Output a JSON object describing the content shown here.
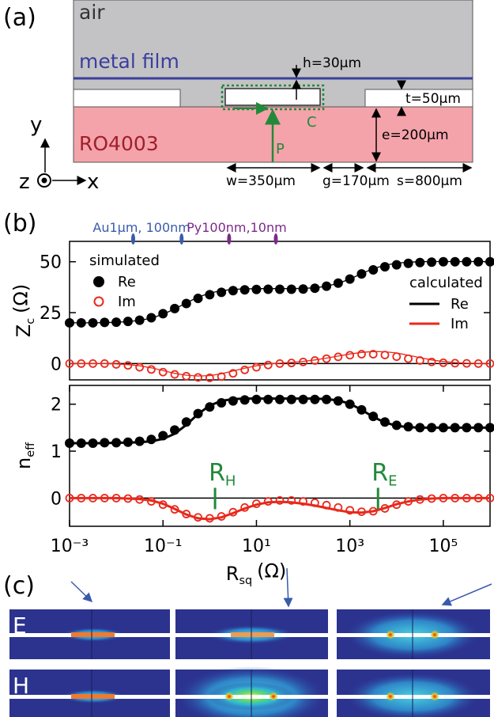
{
  "figure": {
    "diagram": {
      "label": "(a)",
      "air": "air",
      "metal_film": "metal film",
      "h": "h=30µm",
      "t": "t=50µm",
      "contour": "C",
      "substrate": "RO4003",
      "path": "P",
      "e": "e=200µm",
      "w": "w=350µm",
      "g": "g=170µm",
      "s": "s=800µm",
      "axes": {
        "y": "y",
        "z": "z",
        "x": "x"
      }
    },
    "b_label": "(b)",
    "fields": {
      "label": "(c)",
      "rows": [
        "E",
        "H"
      ]
    }
  },
  "chart_data": [
    {
      "type": "line",
      "xscale": "log",
      "xlim": [
        0.001,
        1000000
      ],
      "ylim": [
        -8,
        60
      ],
      "yticks": [
        0,
        25,
        50
      ],
      "zero_line": true,
      "ylabel": {
        "text": "Z",
        "subscript": "c",
        "unit": "(Ω)"
      },
      "top_markers": [
        {
          "text": "Au1µm, 100nm",
          "color": "#3a5bab",
          "x": [
            0.023,
            0.25
          ]
        },
        {
          "text": "Py100nm,10nm",
          "color": "#7b2a8a",
          "x": [
            2.6,
            26
          ]
        }
      ],
      "x": [
        0.001,
        0.00178,
        0.00316,
        0.00562,
        0.01,
        0.0178,
        0.0316,
        0.0562,
        0.1,
        0.178,
        0.316,
        0.562,
        1,
        1.78,
        3.16,
        5.62,
        10,
        17.8,
        31.6,
        56.2,
        100,
        178,
        316,
        562,
        1000,
        1780,
        3160,
        5620,
        10000,
        17800,
        31600,
        56200,
        100000,
        178000,
        316000,
        562000,
        1000000
      ],
      "series_groups": [
        {
          "title": "simulated",
          "legend": "upper left",
          "series": [
            {
              "name": "Re",
              "color": "#000000",
              "style": "filled",
              "values": [
                20,
                20,
                20,
                20.2,
                20.3,
                20.7,
                21.3,
                22.5,
                24.5,
                27,
                29.5,
                32,
                33.8,
                35,
                35.8,
                36.2,
                36.4,
                36.5,
                36.5,
                36.5,
                36.6,
                37,
                38,
                39.5,
                41.5,
                44,
                46,
                47.5,
                48.5,
                49.2,
                49.6,
                49.8,
                50,
                50,
                50,
                50,
                50
              ]
            },
            {
              "name": "Im",
              "color": "#e8291c",
              "style": "open",
              "values": [
                0,
                0,
                0,
                0,
                -0.4,
                -0.9,
                -1.8,
                -2.9,
                -4.2,
                -5.3,
                -6.2,
                -6.8,
                -7,
                -6.4,
                -4.8,
                -3.1,
                -1.8,
                -0.7,
                0,
                0.3,
                0.8,
                1.5,
                2.4,
                3.3,
                4.1,
                4.6,
                4.6,
                4.2,
                3.4,
                2.4,
                1.5,
                0.8,
                0.4,
                0.2,
                0.1,
                0,
                0
              ]
            }
          ]
        },
        {
          "title": "calculated",
          "legend": "right",
          "series": [
            {
              "name": "Re",
              "color": "#000000",
              "style": "line",
              "width": 1.3,
              "values": [
                20,
                20,
                20,
                20.1,
                20.3,
                20.6,
                21.2,
                22.3,
                24.2,
                26.8,
                29.8,
                32.6,
                34.6,
                35.8,
                36.4,
                36.7,
                36.8,
                36.8,
                36.8,
                36.8,
                36.9,
                37.2,
                38,
                39.4,
                41.5,
                44.2,
                46.6,
                48.3,
                49.3,
                49.8,
                50,
                50.1,
                50.1,
                50.1,
                50.1,
                50.1,
                50.1
              ]
            },
            {
              "name": "Im",
              "color": "#e8291c",
              "style": "line",
              "width": 1.3,
              "values": [
                0,
                0,
                0,
                0,
                -0.2,
                -0.5,
                -1.1,
                -2.1,
                -3.4,
                -4.8,
                -5.7,
                -6.1,
                -5.9,
                -5,
                -3.6,
                -2.3,
                -1.1,
                -0.2,
                0.2,
                0.6,
                1.1,
                1.8,
                2.7,
                3.7,
                4.7,
                5.5,
                5.9,
                5.8,
                5.2,
                4.1,
                2.9,
                1.8,
                1,
                0.5,
                0.2,
                0.1,
                0
              ]
            }
          ]
        }
      ]
    },
    {
      "type": "line",
      "xscale": "log",
      "xlim": [
        0.001,
        1000000
      ],
      "ylim": [
        -0.6,
        2.4
      ],
      "yticks": [
        0,
        1,
        2
      ],
      "zero_line": true,
      "ylabel": {
        "text": "n",
        "subscript": "eff"
      },
      "xlabel": {
        "text": "R",
        "subscript": "sq",
        "unit": "(Ω)"
      },
      "xticks": [
        {
          "value": 0.001,
          "label": "10⁻³"
        },
        {
          "value": 0.1,
          "label": "10⁻¹"
        },
        {
          "value": 10,
          "label": "10¹"
        },
        {
          "value": 1000,
          "label": "10³"
        },
        {
          "value": 100000,
          "label": "10⁵"
        }
      ],
      "annotations": [
        {
          "text": "R",
          "subscript": "H",
          "x": 1.3,
          "color": "#23893a"
        },
        {
          "text": "R",
          "subscript": "E",
          "x": 4000,
          "color": "#23893a"
        }
      ],
      "x": [
        0.001,
        0.00178,
        0.00316,
        0.00562,
        0.01,
        0.0178,
        0.0316,
        0.0562,
        0.1,
        0.178,
        0.316,
        0.562,
        1,
        1.78,
        3.16,
        5.62,
        10,
        17.8,
        31.6,
        56.2,
        100,
        178,
        316,
        562,
        1000,
        1780,
        3160,
        5620,
        10000,
        17800,
        31600,
        56200,
        100000,
        178000,
        316000,
        562000,
        1000000
      ],
      "series_groups": [
        {
          "series": [
            {
              "color": "#000000",
              "style": "filled",
              "values": [
                1.17,
                1.17,
                1.17,
                1.18,
                1.18,
                1.19,
                1.21,
                1.25,
                1.33,
                1.45,
                1.62,
                1.8,
                1.94,
                2.03,
                2.07,
                2.09,
                2.1,
                2.1,
                2.1,
                2.1,
                2.1,
                2.1,
                2.1,
                2.07,
                2.0,
                1.88,
                1.74,
                1.62,
                1.55,
                1.52,
                1.5,
                1.5,
                1.5,
                1.5,
                1.5,
                1.5,
                1.5
              ]
            },
            {
              "color": "#e8291c",
              "style": "open",
              "values": [
                0,
                0,
                0,
                0,
                0,
                -0.01,
                -0.03,
                -0.07,
                -0.14,
                -0.24,
                -0.34,
                -0.41,
                -0.43,
                -0.39,
                -0.3,
                -0.2,
                -0.12,
                -0.07,
                -0.05,
                -0.05,
                -0.07,
                -0.1,
                -0.15,
                -0.2,
                -0.26,
                -0.29,
                -0.28,
                -0.22,
                -0.14,
                -0.07,
                -0.03,
                -0.01,
                0,
                0,
                0,
                0,
                0
              ]
            }
          ]
        },
        {
          "series": [
            {
              "color": "#000000",
              "style": "line",
              "width": 3,
              "values": [
                1.17,
                1.17,
                1.17,
                1.17,
                1.18,
                1.18,
                1.19,
                1.21,
                1.26,
                1.37,
                1.56,
                1.79,
                1.97,
                2.07,
                2.11,
                2.12,
                2.12,
                2.12,
                2.12,
                2.12,
                2.12,
                2.12,
                2.11,
                2.08,
                2.01,
                1.88,
                1.73,
                1.61,
                1.54,
                1.51,
                1.5,
                1.5,
                1.5,
                1.5,
                1.5,
                1.5,
                1.5
              ]
            },
            {
              "color": "#e8291c",
              "style": "line",
              "width": 3,
              "values": [
                0,
                0,
                0,
                0,
                0,
                -0.01,
                -0.02,
                -0.05,
                -0.12,
                -0.23,
                -0.35,
                -0.43,
                -0.45,
                -0.41,
                -0.32,
                -0.22,
                -0.14,
                -0.09,
                -0.08,
                -0.09,
                -0.12,
                -0.16,
                -0.21,
                -0.26,
                -0.3,
                -0.31,
                -0.28,
                -0.21,
                -0.13,
                -0.07,
                -0.03,
                -0.01,
                0,
                0,
                0,
                0,
                0
              ]
            }
          ]
        }
      ]
    }
  ]
}
